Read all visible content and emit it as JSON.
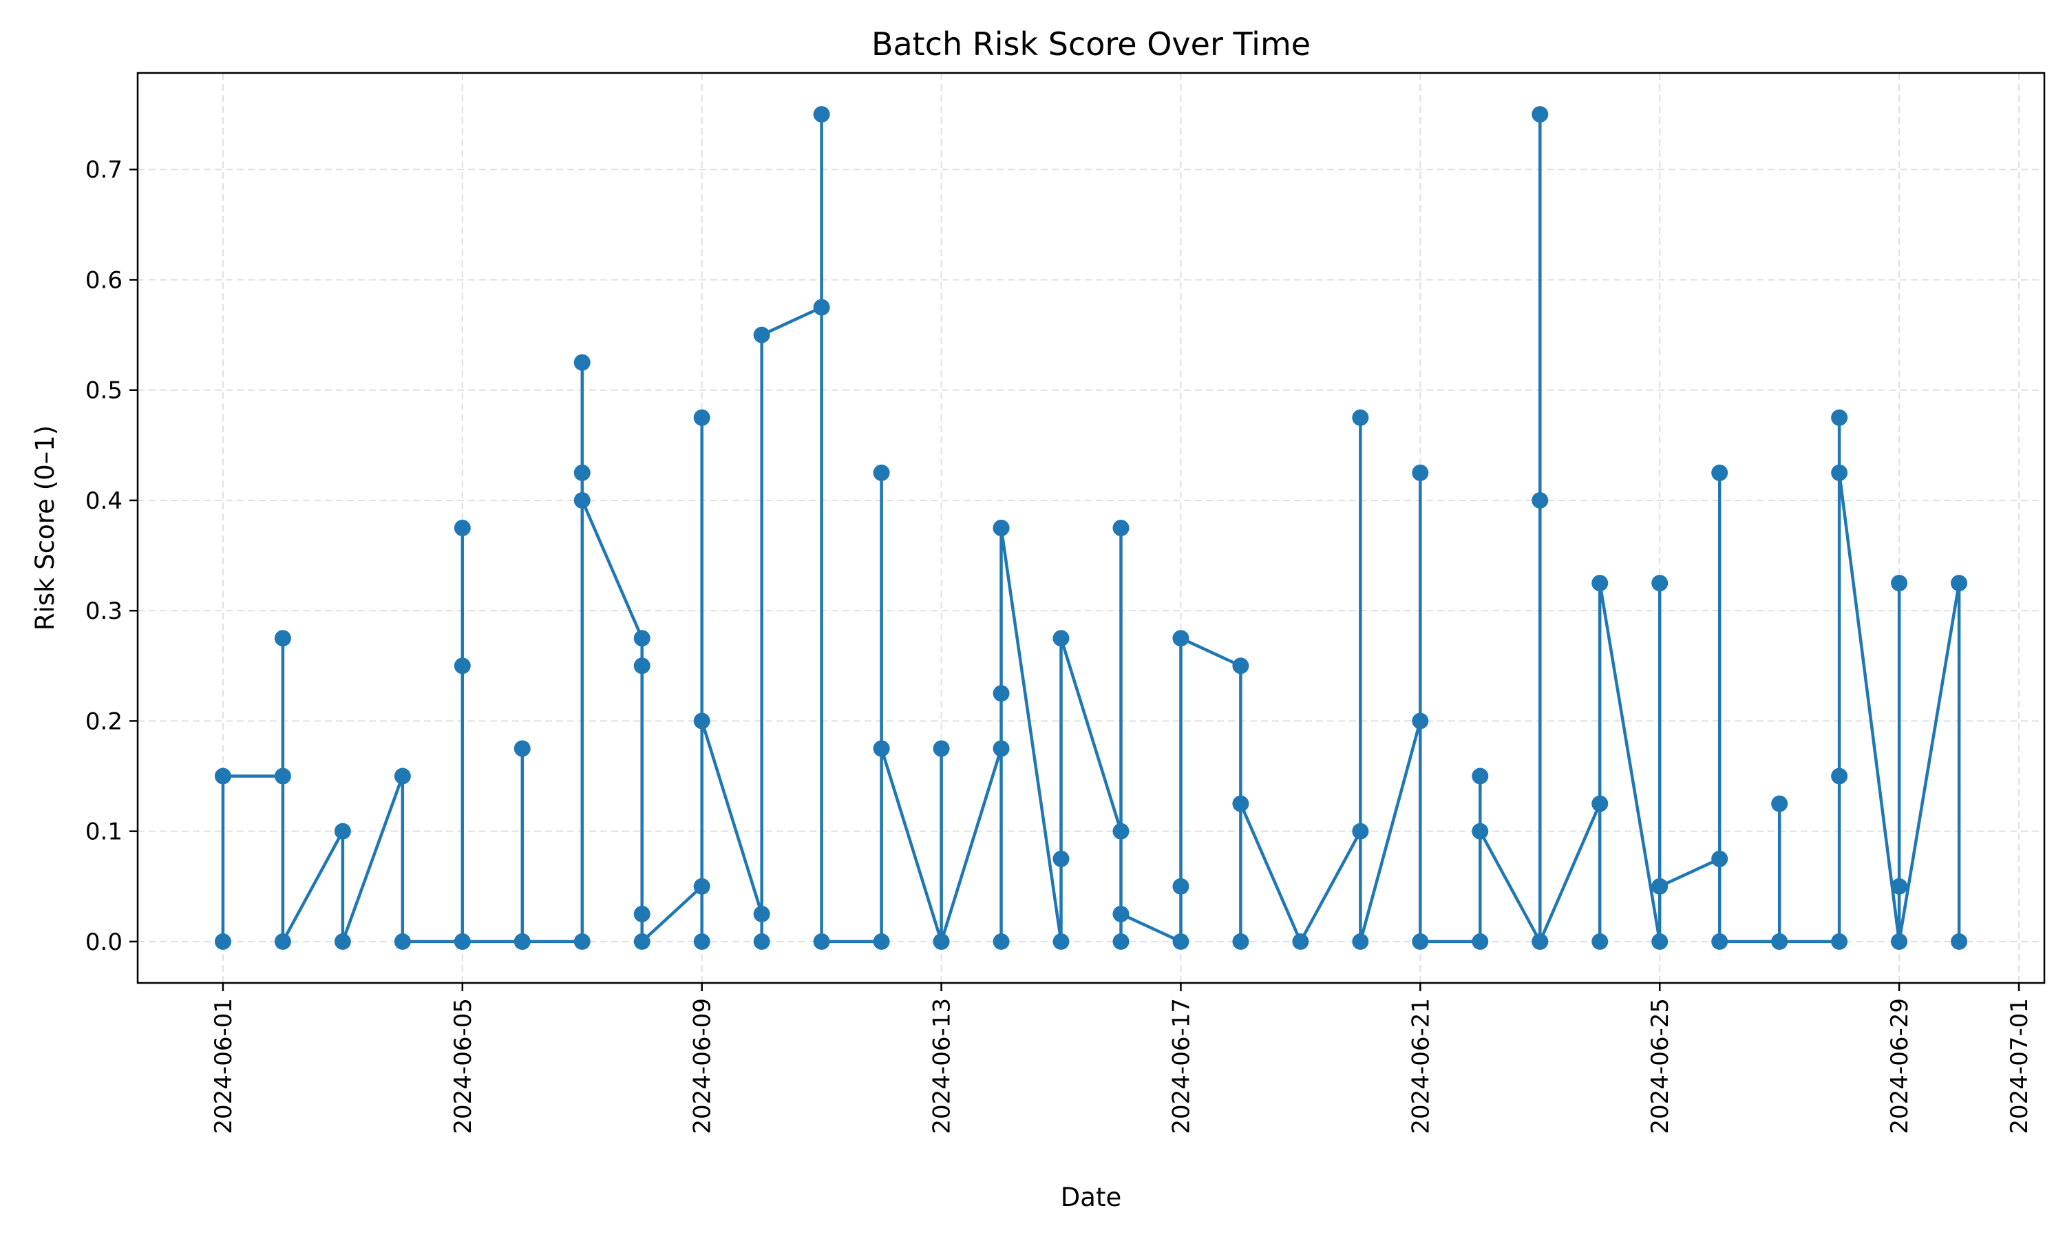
{
  "chart_data": {
    "type": "line",
    "title": "Batch Risk Score Over Time",
    "xlabel": "Date",
    "ylabel": "Risk Score (0–1)",
    "xlim": [
      "2024-05-30T13:48",
      "2024-07-01T10:12"
    ],
    "ylim": [
      -0.0375,
      0.7875
    ],
    "x_ticks": [
      "2024-06-01",
      "2024-06-05",
      "2024-06-09",
      "2024-06-13",
      "2024-06-17",
      "2024-06-21",
      "2024-06-25",
      "2024-06-29",
      "2024-07-01"
    ],
    "y_ticks": [
      "0.0",
      "0.1",
      "0.2",
      "0.3",
      "0.4",
      "0.5",
      "0.6",
      "0.7"
    ],
    "grid": true,
    "grid_style": "dashed",
    "marker": "circle",
    "colors": {
      "line": "#1f77b4",
      "grid": "#e0e0e0",
      "axes": "#000000"
    },
    "series": [
      {
        "points": [
          [
            "2024-06-01",
            0.0
          ],
          [
            "2024-06-01",
            0.15
          ],
          [
            "2024-06-02",
            0.15
          ],
          [
            "2024-06-02",
            0.275
          ],
          [
            "2024-06-02",
            0.0
          ],
          [
            "2024-06-03",
            0.1
          ],
          [
            "2024-06-03",
            0.0
          ],
          [
            "2024-06-04",
            0.15
          ],
          [
            "2024-06-04",
            0.0
          ],
          [
            "2024-06-05",
            0.0
          ],
          [
            "2024-06-05",
            0.375
          ],
          [
            "2024-06-05",
            0.25
          ],
          [
            "2024-06-05",
            0.0
          ],
          [
            "2024-06-06",
            0.0
          ],
          [
            "2024-06-06",
            0.175
          ],
          [
            "2024-06-06",
            0.0
          ],
          [
            "2024-06-07",
            0.0
          ],
          [
            "2024-06-07",
            0.525
          ],
          [
            "2024-06-07",
            0.425
          ],
          [
            "2024-06-07",
            0.4
          ],
          [
            "2024-06-08",
            0.275
          ],
          [
            "2024-06-08",
            0.25
          ],
          [
            "2024-06-08",
            0.025
          ],
          [
            "2024-06-08",
            0.0
          ],
          [
            "2024-06-09",
            0.05
          ],
          [
            "2024-06-09",
            0.0
          ],
          [
            "2024-06-09",
            0.475
          ],
          [
            "2024-06-09",
            0.2
          ],
          [
            "2024-06-10",
            0.025
          ],
          [
            "2024-06-10",
            0.0
          ],
          [
            "2024-06-10",
            0.55
          ],
          [
            "2024-06-11",
            0.575
          ],
          [
            "2024-06-11",
            0.75
          ],
          [
            "2024-06-11",
            0.0
          ],
          [
            "2024-06-12",
            0.0
          ],
          [
            "2024-06-12",
            0.425
          ],
          [
            "2024-06-12",
            0.175
          ],
          [
            "2024-06-13",
            0.0
          ],
          [
            "2024-06-13",
            0.175
          ],
          [
            "2024-06-13",
            0.0
          ],
          [
            "2024-06-14",
            0.175
          ],
          [
            "2024-06-14",
            0.225
          ],
          [
            "2024-06-14",
            0.375
          ],
          [
            "2024-06-14",
            0.0
          ],
          [
            "2024-06-14",
            0.375
          ],
          [
            "2024-06-15",
            0.0
          ],
          [
            "2024-06-15",
            0.075
          ],
          [
            "2024-06-15",
            0.275
          ],
          [
            "2024-06-16",
            0.1
          ],
          [
            "2024-06-16",
            0.375
          ],
          [
            "2024-06-16",
            0.0
          ],
          [
            "2024-06-16",
            0.025
          ],
          [
            "2024-06-17",
            0.0
          ],
          [
            "2024-06-17",
            0.05
          ],
          [
            "2024-06-17",
            0.275
          ],
          [
            "2024-06-18",
            0.25
          ],
          [
            "2024-06-18",
            0.0
          ],
          [
            "2024-06-18",
            0.125
          ],
          [
            "2024-06-19",
            0.0
          ],
          [
            "2024-06-20",
            0.1
          ],
          [
            "2024-06-20",
            0.475
          ],
          [
            "2024-06-20",
            0.0
          ],
          [
            "2024-06-21",
            0.2
          ],
          [
            "2024-06-21",
            0.425
          ],
          [
            "2024-06-21",
            0.0
          ],
          [
            "2024-06-22",
            0.0
          ],
          [
            "2024-06-22",
            0.15
          ],
          [
            "2024-06-22",
            0.1
          ],
          [
            "2024-06-23",
            0.0
          ],
          [
            "2024-06-23",
            0.75
          ],
          [
            "2024-06-23",
            0.4
          ],
          [
            "2024-06-23",
            0.0
          ],
          [
            "2024-06-24",
            0.125
          ],
          [
            "2024-06-24",
            0.0
          ],
          [
            "2024-06-24",
            0.325
          ],
          [
            "2024-06-25",
            0.0
          ],
          [
            "2024-06-25",
            0.325
          ],
          [
            "2024-06-25",
            0.05
          ],
          [
            "2024-06-26",
            0.075
          ],
          [
            "2024-06-26",
            0.425
          ],
          [
            "2024-06-26",
            0.0
          ],
          [
            "2024-06-27",
            0.0
          ],
          [
            "2024-06-27",
            0.125
          ],
          [
            "2024-06-27",
            0.0
          ],
          [
            "2024-06-28",
            0.0
          ],
          [
            "2024-06-28",
            0.15
          ],
          [
            "2024-06-28",
            0.475
          ],
          [
            "2024-06-28",
            0.425
          ],
          [
            "2024-06-29",
            0.0
          ],
          [
            "2024-06-29",
            0.325
          ],
          [
            "2024-06-29",
            0.05
          ],
          [
            "2024-06-29",
            0.0
          ],
          [
            "2024-06-30",
            0.325
          ],
          [
            "2024-06-30",
            0.0
          ]
        ]
      }
    ]
  }
}
